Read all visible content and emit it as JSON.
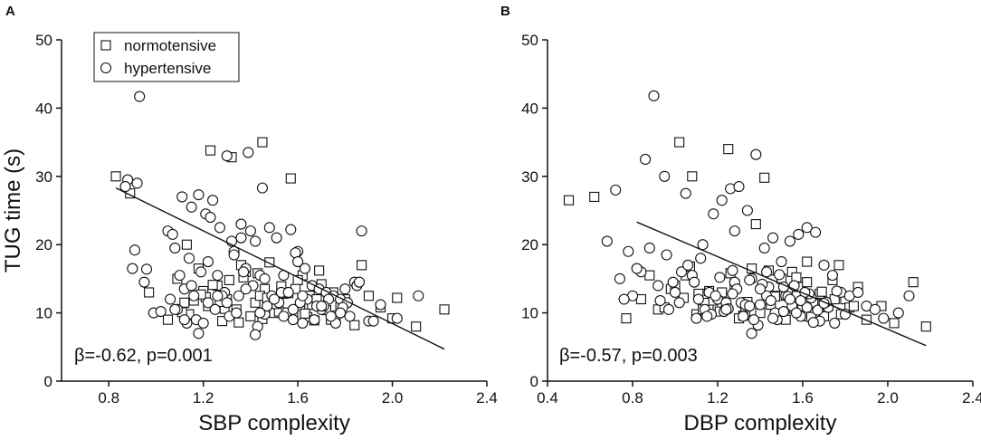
{
  "chart_data": [
    {
      "type": "scatter",
      "panel_label": "A",
      "title": "",
      "xlabel": "SBP complexity",
      "ylabel": "TUG time (s)",
      "xlim": [
        0.6,
        2.4
      ],
      "ylim": [
        0,
        50
      ],
      "xticks": [
        "0.8",
        "1.2",
        "1.6",
        "2.0",
        "2.4"
      ],
      "yticks": [
        "0",
        "10",
        "20",
        "30",
        "40",
        "50"
      ],
      "legend": {
        "placement": "top-left",
        "entries": [
          {
            "label": "normotensive",
            "marker": "square"
          },
          {
            "label": "hypertensive",
            "marker": "circle"
          }
        ]
      },
      "annotation": "β=-0.62, p=0.001",
      "fit_line": {
        "x": [
          0.83,
          2.22
        ],
        "y": [
          28.3,
          4.7
        ]
      },
      "series": [
        {
          "name": "normotensive",
          "marker": "square",
          "x": [
            0.83,
            0.89,
            0.97,
            1.23,
            1.32,
            1.45,
            1.57,
            1.65,
            1.78,
            1.87,
            1.9,
            2.02,
            2.1,
            2.22,
            1.05,
            1.09,
            1.14,
            1.18,
            1.22,
            1.26,
            1.3,
            1.34,
            1.38,
            1.42,
            1.46,
            1.5,
            1.54,
            1.58,
            1.62,
            1.66,
            1.7,
            1.74,
            1.8,
            1.84,
            1.95,
            2.0,
            1.12,
            1.2,
            1.28,
            1.36,
            1.44,
            1.52,
            1.6,
            1.68,
            1.76,
            1.13,
            1.21,
            1.29,
            1.37,
            1.45,
            1.53,
            1.61,
            1.69,
            1.24,
            1.4,
            1.56,
            1.72,
            1.16,
            1.48,
            1.64,
            1.31,
            1.47,
            1.11,
            1.35,
            1.59,
            1.27,
            1.43,
            1.67,
            1.19,
            1.51,
            1.63,
            1.75
          ],
          "y": [
            30.0,
            27.5,
            13.0,
            33.8,
            32.8,
            35.0,
            29.7,
            12.5,
            11.0,
            17.0,
            12.5,
            12.2,
            8.0,
            10.5,
            9.0,
            15.0,
            9.8,
            16.5,
            11.0,
            14.0,
            12.0,
            10.5,
            16.0,
            11.5,
            13.5,
            10.0,
            12.8,
            9.5,
            15.5,
            11.2,
            14.2,
            9.0,
            12.0,
            8.2,
            10.8,
            9.2,
            11.5,
            13.2,
            8.8,
            17.0,
            12.5,
            10.2,
            14.8,
            12.0,
            9.6,
            20.0,
            12.3,
            10.6,
            15.2,
            9.1,
            13.9,
            11.0,
            16.2,
            14.1,
            9.5,
            12.9,
            10.4,
            11.8,
            17.4,
            9.4,
            14.8,
            12.2,
            10.1,
            8.6,
            13.5,
            11.6,
            15.8,
            8.9,
            12.7,
            11.3,
            9.9,
            13.0
          ]
        },
        {
          "name": "hypertensive",
          "marker": "circle",
          "x": [
            0.93,
            0.88,
            0.87,
            0.92,
            0.91,
            0.96,
            0.99,
            0.9,
            0.95,
            1.02,
            1.05,
            1.08,
            1.11,
            1.15,
            1.18,
            1.21,
            1.24,
            1.27,
            1.3,
            1.33,
            1.36,
            1.39,
            1.42,
            1.45,
            1.48,
            1.51,
            1.54,
            1.57,
            1.6,
            1.63,
            1.66,
            1.69,
            1.72,
            1.75,
            1.78,
            1.81,
            1.84,
            1.87,
            1.9,
            1.95,
            2.02,
            2.11,
            1.06,
            1.09,
            1.12,
            1.17,
            1.22,
            1.26,
            1.31,
            1.35,
            1.41,
            1.46,
            1.52,
            1.58,
            1.64,
            1.7,
            1.76,
            1.82,
            1.1,
            1.13,
            1.16,
            1.19,
            1.25,
            1.29,
            1.34,
            1.38,
            1.43,
            1.49,
            1.55,
            1.61,
            1.67,
            1.73,
            1.79,
            1.85,
            1.07,
            1.14,
            1.2,
            1.28,
            1.37,
            1.44,
            1.53,
            1.62,
            1.71,
            1.8,
            1.18,
            1.32,
            1.47,
            1.59,
            1.74,
            1.23,
            1.4,
            1.56,
            1.08,
            1.15,
            1.26,
            1.33,
            1.42,
            1.5,
            1.6,
            1.68,
            1.86,
            1.92,
            1.36,
            1.44,
            1.58,
            1.12,
            1.22,
            1.3,
            1.38,
            1.46,
            1.54,
            1.62,
            1.7,
            1.78
          ],
          "y": [
            41.7,
            29.5,
            28.5,
            29.0,
            19.2,
            16.4,
            10.0,
            16.5,
            14.5,
            10.2,
            22.0,
            19.5,
            27.0,
            25.5,
            27.3,
            24.5,
            26.5,
            22.5,
            33.0,
            19.0,
            21.0,
            33.5,
            20.5,
            28.3,
            22.5,
            21.0,
            15.5,
            22.2,
            19.0,
            16.5,
            14.0,
            13.5,
            13.0,
            12.5,
            12.0,
            11.5,
            14.5,
            22.0,
            8.8,
            11.2,
            9.2,
            12.5,
            12.0,
            10.5,
            13.5,
            9.0,
            11.5,
            15.5,
            9.5,
            12.5,
            14.0,
            9.8,
            11.5,
            9.0,
            12.0,
            10.5,
            8.5,
            9.5,
            15.5,
            8.5,
            12.5,
            16.0,
            10.5,
            13.0,
            10.0,
            16.5,
            8.0,
            12.5,
            10.0,
            11.5,
            9.0,
            12.0,
            10.8,
            14.0,
            21.5,
            18.0,
            8.5,
            12.5,
            16.0,
            10.0,
            13.0,
            8.5,
            11.0,
            13.5,
            7.0,
            20.5,
            11.0,
            18.8,
            9.5,
            24.0,
            22.0,
            13.0,
            10.5,
            14.0,
            12.5,
            18.5,
            6.8,
            12.0,
            17.5,
            11.0,
            14.5,
            8.8,
            23.0,
            15.5,
            10.5,
            9.0,
            17.5,
            11.5,
            13.5,
            15.0,
            9.5,
            12.5,
            11.0,
            10.0
          ]
        }
      ]
    },
    {
      "type": "scatter",
      "panel_label": "B",
      "title": "",
      "xlabel": "DBP complexity",
      "ylabel": "",
      "xlim": [
        0.4,
        2.4
      ],
      "ylim": [
        0,
        50
      ],
      "xticks": [
        "0.4",
        "0.8",
        "1.2",
        "1.6",
        "2.0",
        "2.4"
      ],
      "yticks": [
        "0",
        "10",
        "20",
        "30",
        "40",
        "50"
      ],
      "annotation": "β=-0.57, p=0.003",
      "fit_line": {
        "x": [
          0.82,
          2.18
        ],
        "y": [
          23.3,
          5.2
        ]
      },
      "series": [
        {
          "name": "normotensive",
          "marker": "square",
          "x": [
            0.5,
            0.62,
            1.02,
            1.08,
            1.25,
            1.38,
            1.42,
            1.55,
            1.62,
            1.77,
            1.86,
            1.97,
            2.03,
            2.12,
            2.18,
            0.77,
            0.84,
            0.92,
            0.98,
            1.05,
            1.1,
            1.15,
            1.2,
            1.28,
            1.33,
            1.48,
            1.52,
            1.58,
            1.66,
            1.7,
            1.74,
            1.8,
            1.9,
            0.88,
            1.13,
            1.22,
            1.36,
            1.45,
            1.6,
            1.68,
            1.82,
            1.0,
            1.18,
            1.3,
            1.43,
            1.56,
            1.72,
            1.04,
            1.26,
            1.4,
            1.53,
            1.65,
            1.78,
            0.95,
            1.16,
            1.34,
            1.5,
            1.64,
            1.07,
            1.24,
            1.47,
            1.62,
            1.84,
            1.11,
            1.32,
            1.57,
            1.75,
            1.21,
            1.44,
            1.69
          ],
          "y": [
            26.5,
            27.0,
            35.0,
            30.0,
            34.0,
            23.0,
            29.8,
            16.0,
            17.5,
            17.0,
            13.8,
            11.0,
            8.5,
            14.5,
            8.0,
            9.2,
            12.0,
            10.5,
            13.5,
            15.5,
            9.8,
            12.8,
            11.0,
            14.2,
            10.2,
            12.5,
            9.0,
            13.8,
            11.5,
            9.5,
            14.8,
            12.0,
            9.0,
            15.5,
            10.5,
            13.0,
            16.5,
            11.2,
            9.5,
            12.8,
            10.8,
            14.0,
            11.8,
            9.2,
            13.5,
            10.6,
            11.0,
            12.2,
            15.8,
            10.0,
            13.0,
            11.5,
            9.8,
            10.8,
            13.2,
            11.6,
            15.0,
            9.4,
            16.8,
            10.8,
            12.4,
            14.5,
            11.0,
            12.8,
            9.6,
            15.2,
            12.0,
            10.2,
            16.2,
            13.1
          ]
        },
        {
          "name": "hypertensive",
          "marker": "circle",
          "x": [
            0.9,
            0.72,
            0.78,
            0.86,
            0.95,
            1.05,
            1.12,
            1.18,
            1.22,
            1.26,
            1.3,
            1.34,
            1.38,
            1.42,
            1.46,
            1.5,
            1.54,
            1.58,
            1.62,
            1.66,
            1.7,
            1.74,
            1.78,
            1.82,
            1.86,
            1.9,
            1.94,
            1.98,
            2.05,
            2.1,
            0.68,
            0.74,
            0.8,
            0.84,
            0.96,
            1.0,
            1.08,
            1.14,
            1.2,
            1.24,
            1.28,
            1.32,
            1.36,
            1.4,
            1.44,
            1.48,
            1.52,
            1.56,
            1.6,
            1.64,
            1.68,
            1.72,
            1.76,
            1.8,
            0.88,
            0.93,
            1.03,
            1.1,
            1.16,
            1.23,
            1.27,
            1.31,
            1.35,
            1.39,
            1.43,
            1.47,
            1.51,
            1.55,
            1.59,
            1.63,
            1.67,
            1.71,
            1.75,
            0.99,
            1.06,
            1.11,
            1.17,
            1.21,
            1.25,
            1.29,
            1.33,
            1.37,
            1.41,
            1.45,
            1.49,
            1.53,
            1.57,
            1.61,
            1.65,
            0.82,
            0.92,
            1.02,
            1.13,
            1.19,
            1.24,
            1.28,
            1.36,
            1.4,
            1.46,
            1.54,
            1.62,
            1.7,
            0.76,
            0.97,
            1.09,
            1.15,
            1.27,
            1.35,
            1.43,
            1.51,
            1.59
          ],
          "y": [
            41.8,
            28.0,
            19.0,
            32.5,
            30.0,
            27.5,
            18.0,
            24.5,
            26.5,
            28.2,
            28.5,
            25.0,
            33.2,
            19.5,
            21.0,
            17.5,
            20.5,
            21.5,
            22.5,
            21.8,
            17.0,
            15.5,
            13.0,
            12.5,
            13.0,
            11.0,
            10.5,
            9.2,
            10.0,
            12.5,
            20.5,
            15.0,
            12.5,
            16.0,
            18.5,
            13.0,
            15.5,
            10.5,
            12.0,
            11.5,
            14.5,
            9.5,
            15.0,
            11.2,
            13.8,
            9.0,
            12.5,
            14.0,
            11.0,
            12.2,
            8.8,
            10.8,
            13.2,
            9.8,
            19.5,
            11.8,
            16.0,
            9.2,
            13.0,
            10.2,
            16.2,
            11.5,
            14.8,
            8.2,
            12.5,
            10.0,
            13.8,
            11.0,
            9.5,
            12.8,
            10.4,
            11.6,
            8.5,
            14.5,
            17.0,
            12.0,
            9.8,
            15.2,
            10.6,
            13.5,
            11.2,
            9.0,
            14.2,
            11.8,
            15.6,
            12.4,
            10.0,
            13.0,
            8.6,
            16.5,
            14.0,
            11.5,
            20.0,
            12.5,
            10.5,
            22.0,
            7.0,
            13.5,
            9.2,
            12.0,
            10.8,
            11.4,
            12.0,
            10.5,
            14.5,
            9.5,
            12.8,
            11.0,
            16.0,
            10.2,
            11.8
          ]
        }
      ]
    }
  ]
}
